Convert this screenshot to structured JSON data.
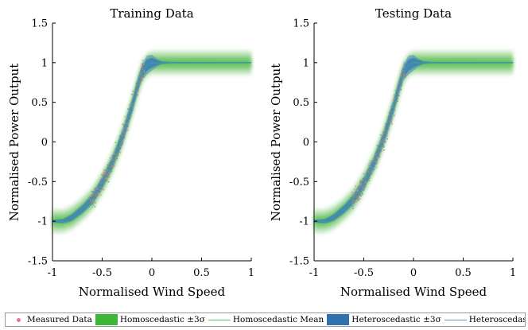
{
  "chart_data": [
    {
      "type": "scatter",
      "title": "Training Data",
      "xlabel": "Normalised Wind Speed",
      "ylabel": "Normalised Power Output",
      "xlim": [
        -1,
        1
      ],
      "ylim": [
        -1.5,
        1.5
      ],
      "xticks": [
        "-1",
        "-0.5",
        "0",
        "0.5",
        "1"
      ],
      "yticks": [
        "-1.5",
        "-1",
        "-0.5",
        "0",
        "0.5",
        "1",
        "1.5"
      ],
      "grid": false,
      "series": [
        {
          "name": "Homoscedastic Mean",
          "kind": "line",
          "x": [
            -1,
            -0.9,
            -0.85,
            -0.8,
            -0.7,
            -0.6,
            -0.5,
            -0.4,
            -0.3,
            -0.2,
            -0.15,
            -0.1,
            -0.05,
            0,
            0.05,
            0.2,
            0.5,
            1
          ],
          "y": [
            -1,
            -1,
            -0.98,
            -0.95,
            -0.85,
            -0.72,
            -0.52,
            -0.27,
            0.05,
            0.45,
            0.68,
            0.88,
            0.97,
            1,
            1,
            1,
            1,
            1
          ]
        },
        {
          "name": "Homoscedastic ±3σ",
          "kind": "band",
          "halfwidth": 0.16
        },
        {
          "name": "Heteroscedastic Mean",
          "kind": "line",
          "x": [
            -1,
            -0.9,
            -0.85,
            -0.8,
            -0.7,
            -0.6,
            -0.5,
            -0.4,
            -0.3,
            -0.2,
            -0.15,
            -0.1,
            -0.05,
            0,
            0.05,
            0.2,
            0.5,
            1
          ],
          "y": [
            -1,
            -1,
            -0.98,
            -0.95,
            -0.85,
            -0.72,
            -0.52,
            -0.27,
            0.05,
            0.45,
            0.68,
            0.88,
            0.97,
            1,
            1,
            1,
            1,
            1
          ]
        },
        {
          "name": "Heteroscedastic ±3σ",
          "kind": "band",
          "x": [
            -1,
            -0.9,
            -0.8,
            -0.6,
            -0.4,
            -0.25,
            -0.1,
            -0.05,
            0,
            0.05,
            0.1,
            0.2,
            1
          ],
          "halfwidth": [
            0.02,
            0.03,
            0.05,
            0.07,
            0.09,
            0.1,
            0.1,
            0.12,
            0.1,
            0.05,
            0.02,
            0.01,
            0.005
          ]
        },
        {
          "name": "Measured Data",
          "kind": "scatter",
          "x_range": [
            -0.62,
            -0.08
          ],
          "count": 420
        }
      ]
    },
    {
      "type": "scatter",
      "title": "Testing Data",
      "xlabel": "Normalised Wind Speed",
      "ylabel": "Normalised Power Output",
      "xlim": [
        -1,
        1
      ],
      "ylim": [
        -1.5,
        1.5
      ],
      "xticks": [
        "-1",
        "-0.5",
        "0",
        "0.5",
        "1"
      ],
      "yticks": [
        "-1.5",
        "-1",
        "-0.5",
        "0",
        "0.5",
        "1",
        "1.5"
      ],
      "grid": false,
      "series": [
        {
          "name": "Homoscedastic Mean",
          "kind": "line",
          "x": [
            -1,
            -0.9,
            -0.85,
            -0.8,
            -0.7,
            -0.6,
            -0.5,
            -0.4,
            -0.3,
            -0.2,
            -0.15,
            -0.1,
            -0.05,
            0,
            0.05,
            0.2,
            0.5,
            1
          ],
          "y": [
            -1,
            -1,
            -0.98,
            -0.95,
            -0.85,
            -0.72,
            -0.52,
            -0.27,
            0.05,
            0.45,
            0.68,
            0.88,
            0.97,
            1,
            1,
            1,
            1,
            1
          ]
        },
        {
          "name": "Homoscedastic ±3σ",
          "kind": "band",
          "halfwidth": 0.16
        },
        {
          "name": "Heteroscedastic Mean",
          "kind": "line",
          "x": [
            -1,
            -0.9,
            -0.85,
            -0.8,
            -0.7,
            -0.6,
            -0.5,
            -0.4,
            -0.3,
            -0.2,
            -0.15,
            -0.1,
            -0.05,
            0,
            0.05,
            0.2,
            0.5,
            1
          ],
          "y": [
            -1,
            -1,
            -0.98,
            -0.95,
            -0.85,
            -0.72,
            -0.52,
            -0.27,
            0.05,
            0.45,
            0.68,
            0.88,
            0.97,
            1,
            1,
            1,
            1,
            1
          ]
        },
        {
          "name": "Heteroscedastic ±3σ",
          "kind": "band",
          "x": [
            -1,
            -0.9,
            -0.8,
            -0.6,
            -0.4,
            -0.25,
            -0.1,
            -0.05,
            0,
            0.05,
            0.1,
            0.2,
            1
          ],
          "halfwidth": [
            0.02,
            0.03,
            0.05,
            0.07,
            0.09,
            0.1,
            0.1,
            0.12,
            0.1,
            0.05,
            0.02,
            0.01,
            0.005
          ]
        },
        {
          "name": "Measured Data",
          "kind": "scatter",
          "x_range": [
            -0.62,
            -0.08
          ],
          "count": 420
        }
      ]
    }
  ],
  "legend": {
    "position": "bottom",
    "items": [
      {
        "label": "Measured Data",
        "kind": "dot",
        "color": "#e3788f"
      },
      {
        "label": "Homoscedastic ±3σ",
        "kind": "patch",
        "color": "#3fb53a"
      },
      {
        "label": "Homoscedastic Mean",
        "kind": "line",
        "color": "#5cc45a"
      },
      {
        "label": "Heteroscedastic ±3σ",
        "kind": "patch",
        "color": "#2f72ad"
      },
      {
        "label": "Heteroscedastic Mean",
        "kind": "line",
        "color": "#5b9bd0"
      }
    ]
  },
  "colors": {
    "homo_band": "#3fb53a",
    "hetero_band": "#3a7bbd",
    "homo_mean": "#4fbf4c",
    "hetero_mean": "#3d86c6",
    "points": [
      "#e3788f",
      "#8a6fb0",
      "#5a9e4a",
      "#c9925a",
      "#7fa3c9"
    ]
  }
}
